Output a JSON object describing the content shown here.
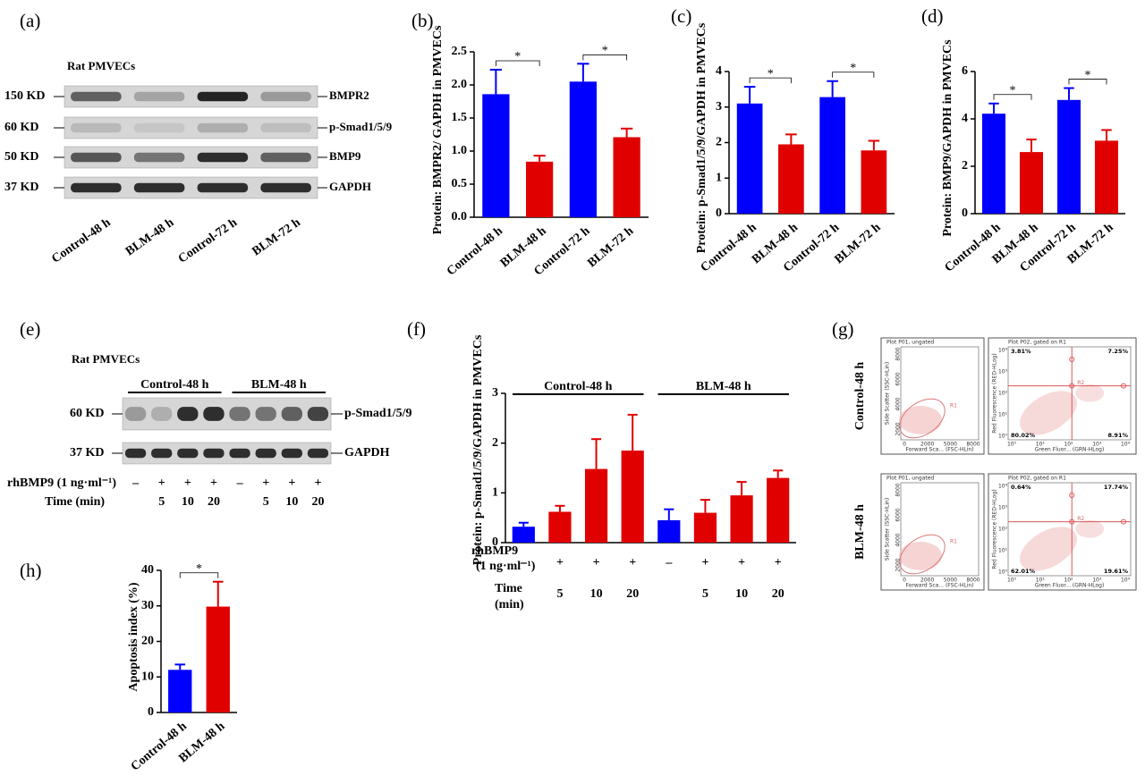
{
  "chart_data": [
    {
      "panel": "(b)",
      "type": "bar",
      "ylabel": "Protein: BMPR2/ GAPDH in PMVECs",
      "categories": [
        "Control-48 h",
        "BLM-48 h",
        "Control-72 h",
        "BLM-72 h"
      ],
      "values": [
        1.86,
        0.84,
        2.05,
        1.21
      ],
      "errors": [
        0.37,
        0.09,
        0.27,
        0.13
      ],
      "colors": [
        "#0000ff",
        "#e00000",
        "#0000ff",
        "#e00000"
      ],
      "ylim": [
        0,
        2.5
      ],
      "yticks": [
        {
          "value": 0,
          "label": "0.0"
        },
        0.5,
        {
          "value": 1,
          "label": "1.0"
        },
        1.5,
        {
          "value": 2,
          "label": "2.0"
        },
        2.5
      ],
      "annotations": [
        "*",
        "*"
      ]
    },
    {
      "panel": "(c)",
      "type": "bar",
      "ylabel": "Protein: p-Smad1/5/9/GAPDH in PMVECs",
      "categories": [
        "Control-48 h",
        "BLM-48 h",
        "Control-72 h",
        "BLM-72 h"
      ],
      "values": [
        3.1,
        1.95,
        3.28,
        1.78
      ],
      "errors": [
        0.47,
        0.28,
        0.45,
        0.27
      ],
      "colors": [
        "#0000ff",
        "#e00000",
        "#0000ff",
        "#e00000"
      ],
      "ylim": [
        0,
        4
      ],
      "yticks": [
        0,
        1,
        2,
        3,
        4
      ],
      "annotations": [
        "*",
        "*"
      ]
    },
    {
      "panel": "(d)",
      "type": "bar",
      "ylabel": "Protein: BMP9/GAPDH in PMVECs",
      "categories": [
        "Control-48 h",
        "BLM-48 h",
        "Control-72 h",
        "BLM-72 h"
      ],
      "values": [
        4.22,
        2.6,
        4.8,
        3.08
      ],
      "errors": [
        0.43,
        0.53,
        0.5,
        0.45
      ],
      "colors": [
        "#0000ff",
        "#e00000",
        "#0000ff",
        "#e00000"
      ],
      "ylim": [
        0,
        6
      ],
      "yticks": [
        0,
        2,
        4,
        6
      ],
      "annotations": [
        "*",
        "*"
      ]
    },
    {
      "panel": "(f)",
      "type": "bar",
      "ylabel": "Protein: p-Smad1/5/9/GAPDH in PMVECs",
      "categories": [
        null,
        null,
        null,
        null,
        null,
        null,
        null,
        null
      ],
      "values": [
        0.32,
        0.62,
        1.48,
        1.85,
        0.45,
        0.6,
        0.95,
        1.3
      ],
      "errors": [
        0.08,
        0.12,
        0.6,
        0.72,
        0.22,
        0.26,
        0.27,
        0.15
      ],
      "colors": [
        "#0000ff",
        "#e00000",
        "#e00000",
        "#e00000",
        "#0000ff",
        "#e00000",
        "#e00000",
        "#e00000"
      ],
      "ylim": [
        0,
        3
      ],
      "yticks": [
        0,
        1,
        2,
        3
      ],
      "groups": [
        "Control-48 h",
        "BLM-48 h"
      ],
      "rows": [
        {
          "label": [
            "rhBMP9",
            "(1 ng·ml⁻¹)"
          ],
          "values": [
            "–",
            "+",
            "+",
            "+",
            "–",
            "+",
            "+",
            "+"
          ]
        },
        {
          "label": [
            "Time",
            "(min)"
          ],
          "values": [
            null,
            "5",
            "10",
            "20",
            null,
            "5",
            "10",
            "20"
          ]
        }
      ]
    },
    {
      "panel": "(h)",
      "type": "bar",
      "ylabel": "Apoptosis index (%)",
      "categories": [
        "Control-48 h",
        "BLM-48 h"
      ],
      "values": [
        12,
        29.8
      ],
      "errors": [
        1.5,
        7
      ],
      "colors": [
        "#0000ff",
        "#e00000"
      ],
      "ylim": [
        0,
        40
      ],
      "yticks": [
        0,
        10,
        20,
        30,
        40
      ],
      "annotations": [
        "*"
      ]
    }
  ],
  "blots": [
    {
      "panel": "(a)",
      "title": "Rat PMVECs",
      "left_labels": [
        "150 KD",
        "60 KD",
        "50 KD",
        "37 KD"
      ],
      "right_labels": [
        "BMPR2",
        "p-Smad1/5/9",
        "BMP9",
        "GAPDH"
      ],
      "lanes": [
        "Control-48 h",
        "BLM-48 h",
        "Control-72 h",
        "BLM-72 h"
      ]
    },
    {
      "panel": "(e)",
      "title": "Rat PMVECs",
      "groups": [
        "Control-48 h",
        "BLM-48 h"
      ],
      "left_labels": [
        "60 KD",
        "37 KD"
      ],
      "right_labels": [
        "p-Smad1/5/9",
        "GAPDH"
      ],
      "rows": [
        {
          "label": "rhBMP9 (1 ng·ml⁻¹)",
          "values": [
            "–",
            "+",
            "+",
            "+",
            "–",
            "+",
            "+",
            "+"
          ]
        },
        {
          "label": "Time (min)",
          "values": [
            null,
            "5",
            "10",
            "20",
            null,
            "5",
            "10",
            "20"
          ]
        }
      ]
    }
  ],
  "flow": {
    "panel": "(g)",
    "rows": [
      {
        "label": "Control-48 h",
        "scatter": {
          "title": "Plot P01, ungated",
          "xlabel": "Forward Sca... (FSC-HLin)",
          "ylabel": "Side Scatter (SSC-HLin)",
          "xticks": [
            "0",
            "2000",
            "5000",
            "8000"
          ],
          "yticks": [
            "2000",
            "4000",
            "6000",
            "8000"
          ],
          "gate": "R1"
        },
        "quadrant": {
          "title": "Plot P02, gated on R1",
          "xlabel": "Green Fluor... (GRN-HLog)",
          "ylabel": "Red Fluorescence (RED-HLog)",
          "ticks": [
            "10⁰",
            "10¹",
            "10²",
            "10³",
            "10⁴"
          ],
          "gate": "R2",
          "quadrants": [
            "3.81%",
            "7.25%",
            "80.02%",
            "8.91%"
          ]
        }
      },
      {
        "label": "BLM-48 h",
        "scatter": {
          "title": "Plot P01, ungated",
          "xlabel": "Forward Sca... (FSC-HLin)",
          "ylabel": "Side Scatter (SSC-HLin)",
          "xticks": [
            "0",
            "2000",
            "5000",
            "8000"
          ],
          "yticks": [
            "2000",
            "4000",
            "6000",
            "8000"
          ],
          "gate": "R1"
        },
        "quadrant": {
          "title": "Plot P02, gated on R1",
          "xlabel": "Green Fluor... (GRN-HLog)",
          "ylabel": "Red Fluorescence (RED-HLog)",
          "ticks": [
            "10⁰",
            "10¹",
            "10²",
            "10³",
            "10⁴"
          ],
          "gate": "R2",
          "quadrants": [
            "0.64%",
            "17.74%",
            "62.01%",
            "19.61%"
          ]
        }
      }
    ]
  }
}
